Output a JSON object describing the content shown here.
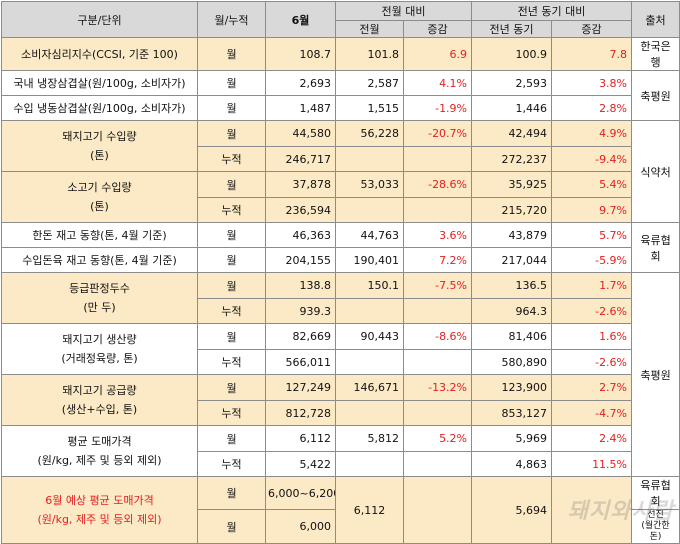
{
  "header": {
    "category": "구분/단위",
    "period": "월/누적",
    "current": "6월",
    "mom": "전월 대비",
    "yoy": "전년 동기 대비",
    "source": "출처",
    "prev_month": "전월",
    "change": "증감",
    "last_year": "전년 동기",
    "change2": "증감"
  },
  "rows": {
    "ccsi": {
      "label": "소비자심리지수(CCSI, 기준 100)",
      "period": "월",
      "current": "108.7",
      "prev": "101.8",
      "mom": "6.9",
      "ly": "100.9",
      "yoy": "7.8"
    },
    "dom_pork": {
      "label": "국내 냉장삼겹살(원/100g, 소비자가)",
      "period": "월",
      "current": "2,693",
      "prev": "2,587",
      "mom": "4.1%",
      "ly": "2,593",
      "yoy": "3.8%"
    },
    "imp_pork": {
      "label": "수입 냉동삼겹살(원/100g, 소비자가)",
      "period": "월",
      "current": "1,487",
      "prev": "1,515",
      "mom": "-1.9%",
      "ly": "1,446",
      "yoy": "2.8%"
    },
    "pork_import": {
      "label": "돼지고기 수입량\n(톤)",
      "m_period": "월",
      "m_current": "44,580",
      "m_prev": "56,228",
      "m_mom": "-20.7%",
      "m_ly": "42,494",
      "m_yoy": "4.9%",
      "c_period": "누적",
      "c_current": "246,717",
      "c_ly": "272,237",
      "c_yoy": "-9.4%"
    },
    "beef_import": {
      "label": "소고기 수입량\n(톤)",
      "m_period": "월",
      "m_current": "37,878",
      "m_prev": "53,033",
      "m_mom": "-28.6%",
      "m_ly": "35,925",
      "m_yoy": "5.4%",
      "c_period": "누적",
      "c_current": "236,594",
      "c_ly": "215,720",
      "c_yoy": "9.7%"
    },
    "handon_stock": {
      "label": "한돈 재고 동향(톤, 4월 기준)",
      "period": "월",
      "current": "46,363",
      "prev": "44,763",
      "mom": "3.6%",
      "ly": "43,879",
      "yoy": "5.7%"
    },
    "import_stock": {
      "label": "수입돈육 재고 동향(톤, 4월 기준)",
      "period": "월",
      "current": "204,155",
      "prev": "190,401",
      "mom": "7.2%",
      "ly": "217,044",
      "yoy": "-5.9%"
    },
    "grading": {
      "label": "등급판정두수\n(만 두)",
      "m_period": "월",
      "m_current": "138.8",
      "m_prev": "150.1",
      "m_mom": "-7.5%",
      "m_ly": "136.5",
      "m_yoy": "1.7%",
      "c_period": "누적",
      "c_current": "939.3",
      "c_ly": "964.3",
      "c_yoy": "-2.6%"
    },
    "production": {
      "label": "돼지고기 생산량\n(거래정육량, 톤)",
      "m_period": "월",
      "m_current": "82,669",
      "m_prev": "90,443",
      "m_mom": "-8.6%",
      "m_ly": "81,406",
      "m_yoy": "1.6%",
      "c_period": "누적",
      "c_current": "566,011",
      "c_ly": "580,890",
      "c_yoy": "-2.6%"
    },
    "supply": {
      "label": "돼지고기 공급량\n(생산+수입, 톤)",
      "m_period": "월",
      "m_current": "127,249",
      "m_prev": "146,671",
      "m_mom": "-13.2%",
      "m_ly": "123,900",
      "m_yoy": "2.7%",
      "c_period": "누적",
      "c_current": "812,728",
      "c_ly": "853,127",
      "c_yoy": "-4.7%"
    },
    "wholesale": {
      "label": "평균 도매가격\n(원/kg, 제주 및 등외 제외)",
      "m_period": "월",
      "m_current": "6,112",
      "m_prev": "5,812",
      "m_mom": "5.2%",
      "m_ly": "5,969",
      "m_yoy": "2.4%",
      "c_period": "누적",
      "c_current": "5,422",
      "c_ly": "4,863",
      "c_yoy": "11.5%"
    },
    "forecast": {
      "label": "6월 예상 평균 도매가격\n(원/kg, 제주 및 등외 제외)",
      "m_period": "월",
      "m_current": "6,000~6,200",
      "prev": "6,112",
      "ly": "5,694",
      "c_period": "월",
      "c_current": "6,000"
    }
  },
  "sources": {
    "bok": "한국은행",
    "kape1": "축평원",
    "qia": "식약처",
    "meat_assoc": "육류협회",
    "kape2": "축평원",
    "meat_assoc2": "육류협회",
    "seonjin": "선진\n(월간한돈)"
  },
  "watermark": "돼지와사람"
}
